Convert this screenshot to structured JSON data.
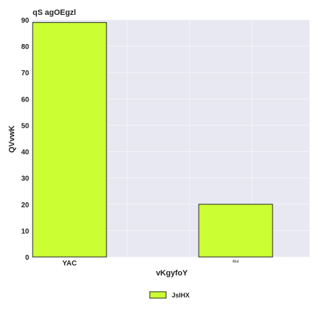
{
  "chart_data": {
    "type": "bar",
    "title": "qS agOEgzl",
    "xlabel": "vKgyfoY",
    "ylabel": "QVvwK",
    "categories": [
      "YAC",
      "Rkd"
    ],
    "series": [
      {
        "name": "JsIHX",
        "values": [
          89,
          20
        ]
      }
    ],
    "ylim": [
      0,
      90
    ],
    "yticks": [
      0,
      10,
      20,
      30,
      40,
      50,
      60,
      70,
      80,
      90
    ],
    "grid": true,
    "legend_position": "bottom-center",
    "colors": {
      "bar_fill": "#ccff33",
      "bar_stroke": "#222222",
      "plot_background": "#e8e8f3",
      "grid": "#f4f4f8"
    }
  }
}
